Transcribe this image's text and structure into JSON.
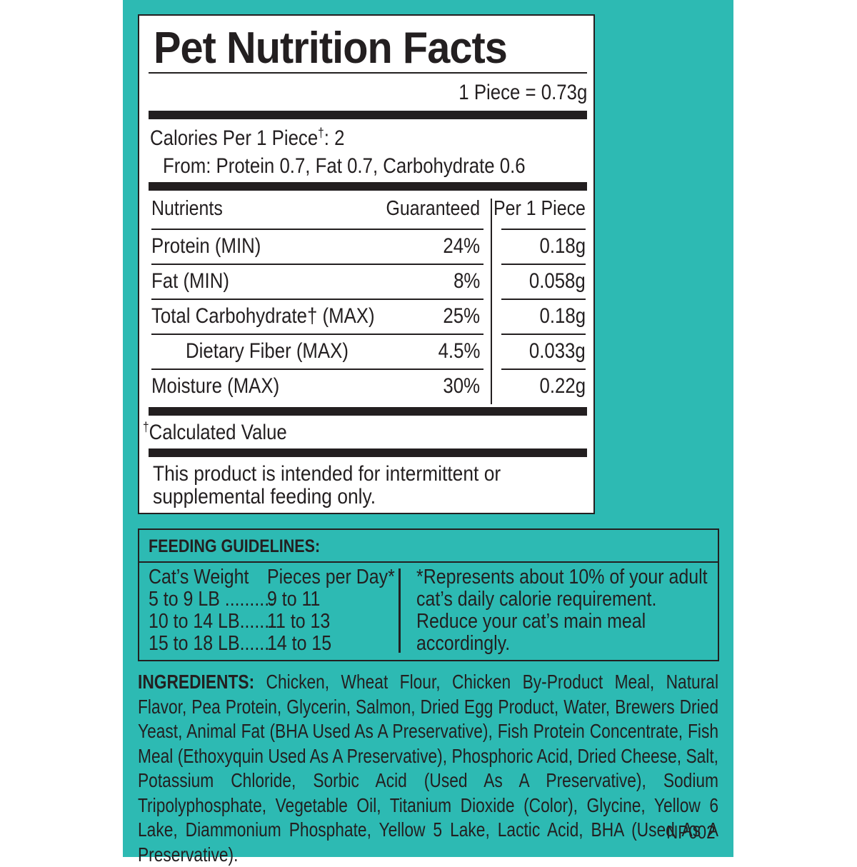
{
  "nutrition": {
    "title": "Pet Nutrition Facts",
    "serving": "1 Piece = 0.73g",
    "calories_label": "Calories Per 1 Piece",
    "calories_mark": "†",
    "calories_value": ": 2",
    "calories_from": "From: Protein 0.7, Fat 0.7, Carbohydrate 0.6",
    "table": {
      "header": [
        "Nutrients",
        "Guaranteed",
        "Per 1 Piece"
      ],
      "rows": [
        [
          "Protein (MIN)",
          "24%",
          "0.18g"
        ],
        [
          "Fat (MIN)",
          "8%",
          "0.058g"
        ],
        [
          "Total Carbohydrate† (MAX)",
          "25%",
          "0.18g"
        ],
        [
          "Dietary Fiber (MAX)",
          "4.5%",
          "0.033g"
        ],
        [
          "Moisture (MAX)",
          "30%",
          "0.22g"
        ]
      ]
    },
    "footnote_mark": "†",
    "footnote": "Calculated Value",
    "disclaimer": "This product is intended for intermittent or supplemental feeding only."
  },
  "feeding": {
    "title": "FEEDING GUIDELINES:",
    "header": [
      "Cat’s Weight",
      "Pieces per Day*"
    ],
    "rows": [
      [
        "5 to 9 LB ..........",
        "9 to 11"
      ],
      [
        "10 to 14 LB.......",
        "11 to 13"
      ],
      [
        "15 to 18 LB.......",
        "14 to 15"
      ]
    ],
    "note": "*Represents about 10% of your adult cat’s daily calorie requirement. Reduce your cat’s main meal accordingly."
  },
  "ingredients": {
    "label": "INGREDIENTS:",
    "text": "Chicken, Wheat Flour, Chicken By-Product Meal, Natural Flavor, Pea Protein, Glycerin, Salmon, Dried Egg Product, Water, Brewers Dried Yeast, Animal Fat (BHA Used As A Preservative), Fish Protein Concentrate, Fish Meal (Ethoxyquin Used As A Preservative), Phosphoric Acid, Dried Cheese, Salt, Potassium Chloride, Sorbic Acid (Used As A Preservative), Sodium Tripolyphosphate, Vegetable Oil, Titanium Dioxide (Color), Glycine, Yellow 6 Lake, Diammonium Phosphate, Yellow 5 Lake, Lactic Acid, BHA (Used As A Preservative).",
    "code": "NP002"
  }
}
